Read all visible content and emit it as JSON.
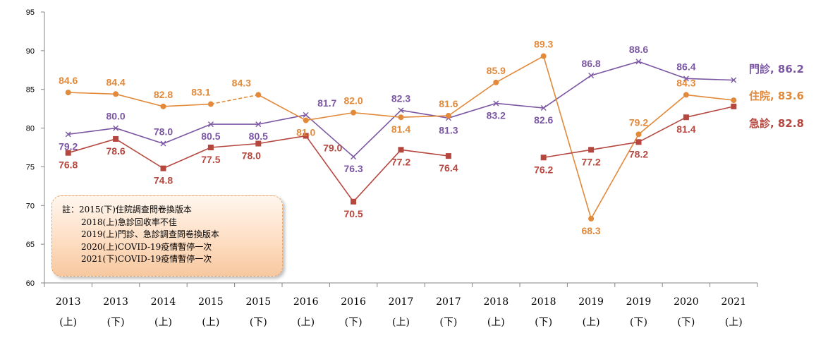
{
  "chart_data": {
    "type": "line",
    "title": "",
    "xlabel": "",
    "ylabel": "",
    "ylim": [
      60,
      95
    ],
    "yticks": [
      60,
      65,
      70,
      75,
      80,
      85,
      90,
      95
    ],
    "grid": false,
    "categories": [
      [
        "2013",
        "(上)"
      ],
      [
        "2013",
        "(下)"
      ],
      [
        "2014",
        "(上)"
      ],
      [
        "2015",
        "(上)"
      ],
      [
        "2015",
        "(下)"
      ],
      [
        "2016",
        "(上)"
      ],
      [
        "2016",
        "(下)"
      ],
      [
        "2017",
        "(上)"
      ],
      [
        "2017",
        "(下)"
      ],
      [
        "2018",
        "(上)"
      ],
      [
        "2018",
        "(下)"
      ],
      [
        "2019",
        "(上)"
      ],
      [
        "2019",
        "(下)"
      ],
      [
        "2020",
        "(下)"
      ],
      [
        "2021",
        "(上)"
      ]
    ],
    "series": [
      {
        "name": "門診",
        "end_label": "門診, 86.2",
        "color": "#7b57a3",
        "marker": "x",
        "values": [
          79.2,
          80.0,
          78.0,
          80.5,
          80.5,
          81.7,
          76.3,
          82.3,
          81.3,
          83.2,
          82.6,
          86.8,
          88.6,
          86.4,
          86.2
        ],
        "labels": [
          "79.2",
          "80.0",
          "78.0",
          "80.5",
          "80.5",
          "81.7",
          "76.3",
          "82.3",
          "81.3",
          "83.2",
          "82.6",
          "86.8",
          "88.6",
          "86.4",
          ""
        ]
      },
      {
        "name": "住院",
        "end_label": "住院, 83.6",
        "color": "#e2893a",
        "marker": "circle",
        "dashed_segments": [
          3
        ],
        "values": [
          84.6,
          84.4,
          82.8,
          83.1,
          84.3,
          81.0,
          82.0,
          81.4,
          81.6,
          85.9,
          89.3,
          68.3,
          79.2,
          84.3,
          83.6
        ],
        "labels": [
          "84.6",
          "84.4",
          "82.8",
          "83.1",
          "84.3",
          "81.0",
          "82.0",
          "81.4",
          "81.6",
          "85.9",
          "89.3",
          "68.3",
          "79.2",
          "84.3",
          ""
        ]
      },
      {
        "name": "急診",
        "end_label": "急診, 82.8",
        "color": "#b5473f",
        "marker": "square",
        "values": [
          76.8,
          78.6,
          74.8,
          77.5,
          78.0,
          79.0,
          70.5,
          77.2,
          76.4,
          null,
          76.2,
          77.2,
          78.2,
          81.4,
          82.8
        ],
        "labels": [
          "76.8",
          "78.6",
          "74.8",
          "77.5",
          "78.0",
          "79.0",
          "70.5",
          "77.2",
          "76.4",
          "",
          "76.2",
          "77.2",
          "78.2",
          "81.4",
          ""
        ]
      }
    ],
    "note": {
      "lines": [
        "註：2015(下)住院調查問卷換版本",
        "2018(上)急診回收率不佳",
        "2019(上)門診、急診調查問卷換版本",
        "2020(上)COVID-19疫情暫停一次",
        "2021(下)COVID-19疫情暫停一次"
      ]
    }
  }
}
